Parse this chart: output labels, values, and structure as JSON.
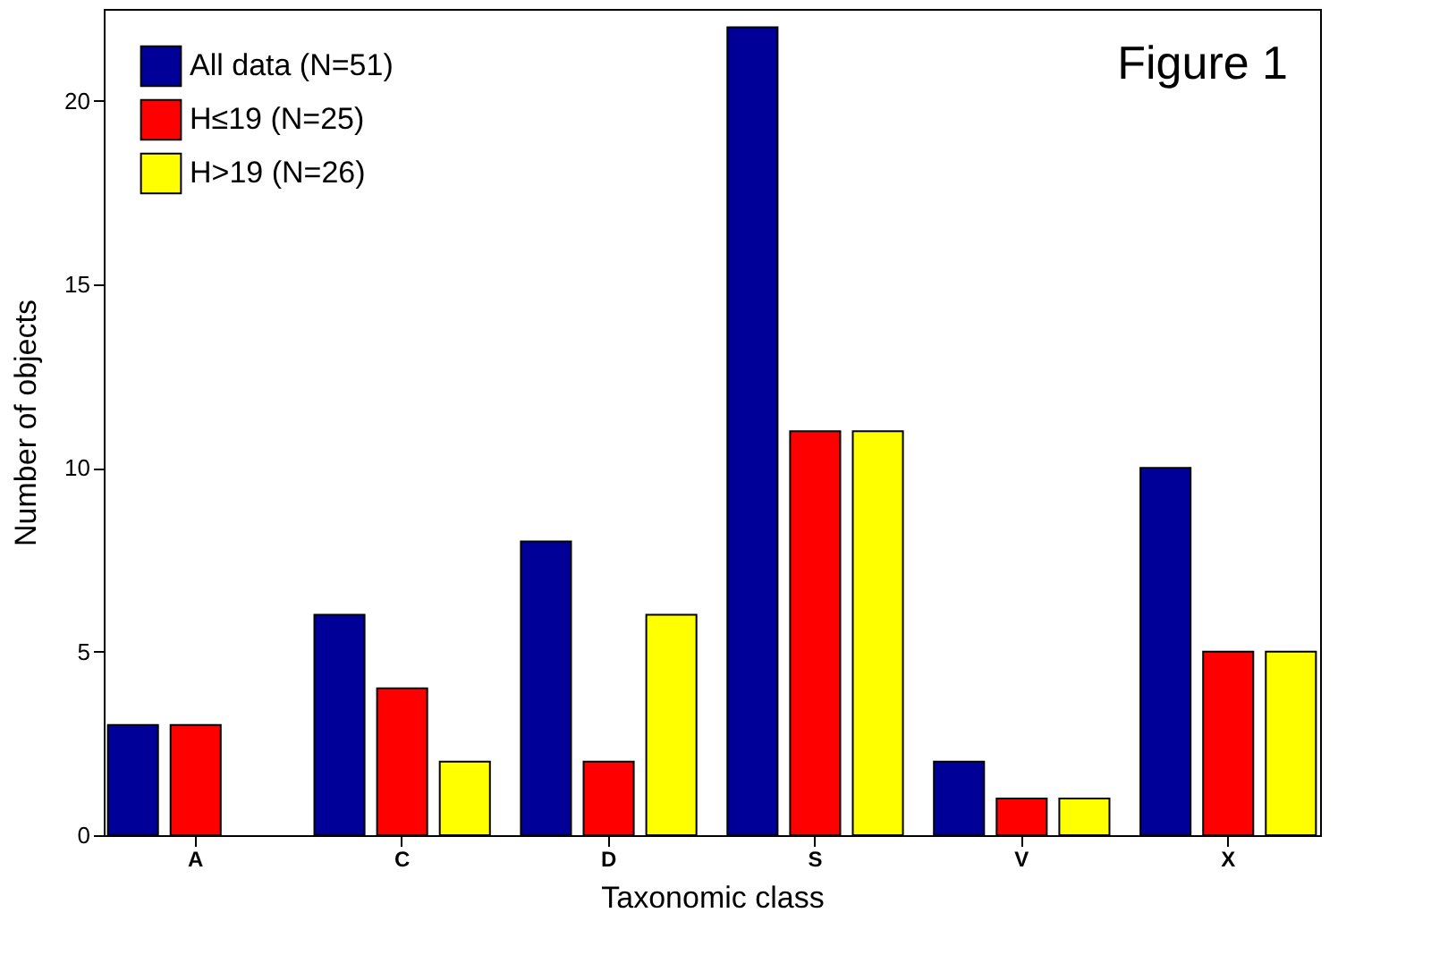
{
  "chart_data": {
    "type": "bar",
    "xlabel": "Taxonomic class",
    "ylabel": "Number of objects",
    "categories": [
      "A",
      "C",
      "D",
      "S",
      "V",
      "X"
    ],
    "series": [
      {
        "name": "All data (N=51)",
        "color": "#000099",
        "values": [
          3,
          6,
          8,
          22,
          2,
          10
        ]
      },
      {
        "name": "H≤19 (N=25)",
        "color": "#ff0000",
        "values": [
          3,
          4,
          2,
          11,
          1,
          5
        ]
      },
      {
        "name": "H>19 (N=26)",
        "color": "#ffff00",
        "values": [
          null,
          2,
          6,
          11,
          1,
          5
        ]
      }
    ],
    "ylim": [
      0,
      22.5
    ],
    "yticks": [
      0,
      5,
      10,
      15,
      20
    ],
    "grid": false,
    "legend": "top left",
    "annotations": [
      "Figure 1"
    ]
  }
}
